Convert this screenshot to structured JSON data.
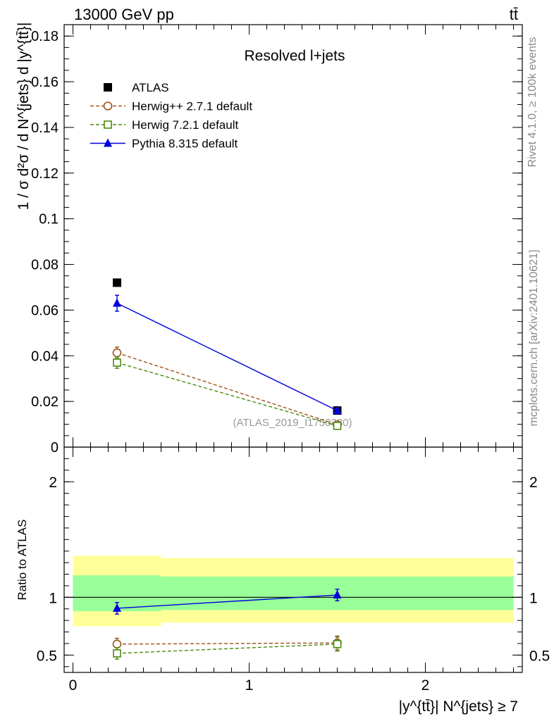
{
  "header": {
    "left": "13000 GeV pp",
    "right": "tt̄"
  },
  "side_labels": {
    "rivet": "Rivet 4.1.0, ≥ 100k events",
    "mcplots": "mcplots.cern.ch [arXiv:2401.10621]"
  },
  "colors": {
    "atlas": "#000000",
    "herwigpp": "#a0521c",
    "herwig7": "#4b8a0e",
    "pythia": "#0000dd",
    "band_inner": "#99ff99",
    "band_outer": "#ffff99"
  },
  "chart_data": [
    {
      "type": "scatter",
      "panel": "main",
      "title": "Resolved l+jets",
      "watermark": "(ATLAS_2019_I1750330)",
      "ylabel": "1 / σ d²σ / d N^{jets} d |y^{tt̄}|",
      "ylim": [
        0,
        0.185
      ],
      "xlim": [
        -0.05,
        2.55
      ],
      "yticks": [
        0,
        0.02,
        0.04,
        0.06,
        0.08,
        0.1,
        0.12,
        0.14,
        0.16,
        0.18
      ],
      "ytick_labels": [
        "0",
        "0.02",
        "0.04",
        "0.06",
        "0.08",
        "0.1",
        "0.12",
        "0.14",
        "0.16",
        "0.18"
      ],
      "legend_position": "top-left",
      "series": [
        {
          "name": "ATLAS",
          "key": "atlas",
          "marker": "filled-square",
          "line": "none",
          "x": [
            0.25,
            1.5
          ],
          "y": [
            0.072,
            0.016
          ],
          "err": [
            0.0,
            0.0
          ]
        },
        {
          "name": "Herwig++ 2.7.1 default",
          "key": "herwigpp",
          "marker": "open-circle",
          "line": "dashed",
          "x": [
            0.25,
            1.5
          ],
          "y": [
            0.0413,
            0.0098
          ],
          "err": [
            0.0025,
            0.001
          ]
        },
        {
          "name": "Herwig 7.2.1 default",
          "key": "herwig7",
          "marker": "open-square",
          "line": "dashed",
          "x": [
            0.25,
            1.5
          ],
          "y": [
            0.037,
            0.0093
          ],
          "err": [
            0.0025,
            0.001
          ]
        },
        {
          "name": "Pythia 8.315 default",
          "key": "pythia",
          "marker": "filled-triangle",
          "line": "solid",
          "x": [
            0.25,
            1.5
          ],
          "y": [
            0.063,
            0.016
          ],
          "err": [
            0.0035,
            0.0009
          ]
        }
      ]
    },
    {
      "type": "scatter",
      "panel": "ratio",
      "ylabel": "Ratio to ATLAS",
      "xlabel": "|y^{tt̄}| N^{jets} ≥ 7",
      "ylim": [
        0.35,
        2.3
      ],
      "xlim": [
        -0.05,
        2.55
      ],
      "yticks": [
        0.5,
        1,
        2
      ],
      "ytick_labels": [
        "0.5",
        "1",
        "2"
      ],
      "xticks": [
        0,
        1,
        2
      ],
      "xtick_labels": [
        "0",
        "1",
        "2"
      ],
      "reference": 1.0,
      "bands": [
        {
          "x": [
            0.0,
            0.5
          ],
          "inner": [
            0.88,
            1.19
          ],
          "outer": [
            0.75,
            1.36
          ]
        },
        {
          "x": [
            0.5,
            2.5
          ],
          "inner": [
            0.89,
            1.18
          ],
          "outer": [
            0.78,
            1.34
          ]
        }
      ],
      "series": [
        {
          "name": "Herwig++ 2.7.1 default",
          "key": "herwigpp",
          "x": [
            0.25,
            1.5
          ],
          "y": [
            0.595,
            0.605
          ],
          "err": [
            0.05,
            0.06
          ]
        },
        {
          "name": "Herwig 7.2.1 default",
          "key": "herwig7",
          "x": [
            0.25,
            1.5
          ],
          "y": [
            0.515,
            0.595
          ],
          "err": [
            0.05,
            0.06
          ]
        },
        {
          "name": "Pythia 8.315 default",
          "key": "pythia",
          "x": [
            0.25,
            1.5
          ],
          "y": [
            0.905,
            1.02
          ],
          "err": [
            0.05,
            0.05
          ]
        }
      ]
    }
  ]
}
